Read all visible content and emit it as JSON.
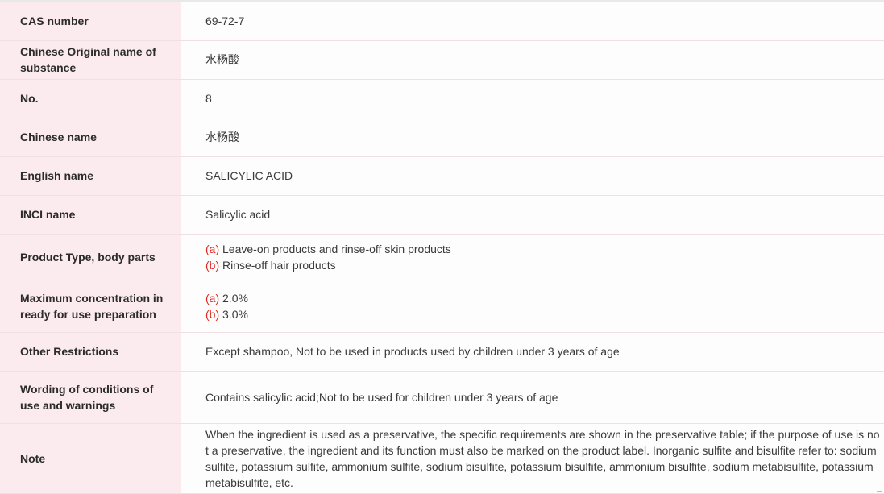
{
  "rows": [
    {
      "label": "CAS number",
      "value": "69-72-7"
    },
    {
      "label": "Chinese Original name of substance",
      "value": "水杨酸"
    },
    {
      "label": "No.",
      "value": "8"
    },
    {
      "label": "Chinese name",
      "value": "水杨酸"
    },
    {
      "label": "English name",
      "value": "SALICYLIC ACID"
    },
    {
      "label": "INCI name",
      "value": "Salicylic acid"
    },
    {
      "label": "Product Type, body parts",
      "items": [
        {
          "mark": "(a)",
          "text": " Leave-on products and rinse-off skin products"
        },
        {
          "mark": "(b)",
          "text": " Rinse-off hair products"
        }
      ]
    },
    {
      "label": "Maximum concentration in ready for use preparation",
      "items": [
        {
          "mark": "(a)",
          "text": " 2.0%"
        },
        {
          "mark": "(b)",
          "text": " 3.0%"
        }
      ]
    },
    {
      "label": "Other Restrictions",
      "value": "Except shampoo, Not to be used in products used by children under 3 years of age"
    },
    {
      "label": "Wording of conditions of use and warnings",
      "value": "Contains salicylic acid;Not to be used for children under 3 years of age"
    },
    {
      "label": "Note",
      "value": "When the ingredient is used as a preservative, the specific requirements are shown in the preservative table; if the purpose of use is not a preservative, the ingredient and its function must also be marked on the product label. Inorganic sulfite and bisulfite refer to: sodium sulfite, potassium sulfite, ammonium sulfite, sodium bisulfite, potassium bisulfite, ammonium bisulfite, sodium metabisulfite, potassium metabisulfite, etc."
    }
  ],
  "colors": {
    "label_bg": "#fcebee",
    "mark": "#e0261c"
  }
}
